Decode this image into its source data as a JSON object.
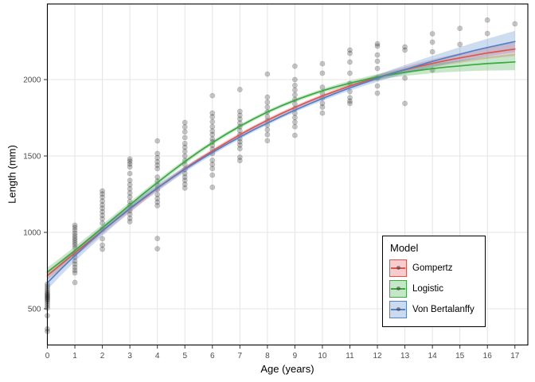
{
  "chart_data": {
    "type": "scatter",
    "title": "",
    "xlabel": "Age (years)",
    "ylabel": "Length (mm)",
    "legend_title": "Model",
    "legend_position": "inside bottom-right",
    "grid": "major only",
    "xlim": [
      0,
      17.47
    ],
    "ylim": [
      263,
      2495
    ],
    "x_ticks": [
      0,
      1,
      2,
      3,
      4,
      5,
      6,
      7,
      8,
      9,
      10,
      11,
      12,
      13,
      14,
      15,
      16,
      17
    ],
    "y_ticks": [
      500,
      1000,
      1500,
      2000
    ],
    "colors": {
      "grid": "#E4E4E4",
      "axis_text": "#4D4D4D",
      "panel_border": "#000000",
      "point": "#000000"
    },
    "points_alpha": 0.22,
    "points_by_age": {
      "0": [
        352,
        368,
        455,
        505,
        520,
        535,
        548,
        558,
        566,
        574,
        582,
        590,
        598,
        608,
        620,
        633,
        648,
        662
      ],
      "1": [
        672,
        735,
        752,
        772,
        792,
        812,
        838,
        862,
        900,
        918,
        933,
        948,
        963,
        978,
        995,
        1015,
        1032,
        1047
      ],
      "2": [
        890,
        917,
        958,
        1021,
        1060,
        1089,
        1112,
        1135,
        1158,
        1180,
        1205,
        1230,
        1252,
        1271
      ],
      "3": [
        1070,
        1092,
        1118,
        1142,
        1177,
        1203,
        1232,
        1258,
        1285,
        1312,
        1340,
        1385,
        1428,
        1448,
        1465,
        1480
      ],
      "4": [
        893,
        960,
        1175,
        1198,
        1222,
        1248,
        1281,
        1308,
        1335,
        1362,
        1417,
        1440,
        1462,
        1488,
        1516,
        1599
      ],
      "5": [
        1290,
        1315,
        1340,
        1362,
        1385,
        1412,
        1443,
        1470,
        1500,
        1530,
        1557,
        1582,
        1620,
        1658,
        1690,
        1719
      ],
      "6": [
        1295,
        1375,
        1418,
        1445,
        1472,
        1516,
        1545,
        1570,
        1592,
        1612,
        1640,
        1663,
        1692,
        1724,
        1756,
        1781,
        1895
      ],
      "7": [
        1470,
        1492,
        1548,
        1572,
        1593,
        1613,
        1640,
        1666,
        1692,
        1716,
        1742,
        1766,
        1792,
        1935
      ],
      "8": [
        1600,
        1640,
        1672,
        1702,
        1730,
        1758,
        1788,
        1820,
        1852,
        1885,
        2036
      ],
      "9": [
        1635,
        1692,
        1722,
        1752,
        1780,
        1810,
        1840,
        1870,
        1900,
        1932,
        1962,
        2000,
        2088
      ],
      "10": [
        1781,
        1820,
        1845,
        1880,
        1911,
        1950,
        2042,
        2104
      ],
      "11": [
        1844,
        1860,
        1882,
        1922,
        1975,
        2042,
        2115,
        2172,
        2193
      ],
      "12": [
        1911,
        1958,
        2010,
        2073,
        2120,
        2161,
        2219,
        2234
      ],
      "13": [
        1844,
        2010,
        2193,
        2214
      ],
      "14": [
        2063,
        2182,
        2245,
        2300
      ],
      "15": [
        2230,
        2335
      ],
      "16": [
        2302,
        2390
      ],
      "17": [
        2365
      ]
    },
    "series": [
      {
        "name": "Gompertz",
        "color": "#E0544E",
        "band": {
          "start": 30,
          "mid": 12,
          "end": 45
        },
        "x_start": 0,
        "x_step": 0.5,
        "values": [
          718,
          791,
          865,
          938,
          1011,
          1083,
          1153,
          1222,
          1289,
          1354,
          1416,
          1476,
          1533,
          1587,
          1639,
          1688,
          1734,
          1777,
          1818,
          1857,
          1893,
          1926,
          1958,
          1987,
          2014,
          2040,
          2064,
          2086,
          2106,
          2125,
          2142,
          2158,
          2174,
          2187,
          2200
        ]
      },
      {
        "name": "Logistic",
        "color": "#38A93F",
        "band": {
          "start": 30,
          "mid": 12,
          "end": 55
        },
        "x_start": 0,
        "x_step": 0.5,
        "values": [
          740,
          810,
          881,
          955,
          1030,
          1105,
          1180,
          1254,
          1326,
          1396,
          1463,
          1527,
          1587,
          1643,
          1695,
          1743,
          1788,
          1828,
          1864,
          1897,
          1927,
          1953,
          1977,
          1998,
          2017,
          2033,
          2048,
          2060,
          2072,
          2082,
          2090,
          2098,
          2105,
          2110,
          2116
        ]
      },
      {
        "name": "Von Bertalanffy",
        "color": "#5081C9",
        "band": {
          "start": 45,
          "mid": 13,
          "end": 70
        },
        "x_start": 0,
        "x_step": 0.5,
        "values": [
          670,
          761,
          848,
          930,
          1009,
          1084,
          1156,
          1225,
          1291,
          1353,
          1413,
          1469,
          1523,
          1575,
          1624,
          1672,
          1716,
          1759,
          1800,
          1839,
          1876,
          1912,
          1946,
          1978,
          2009,
          2039,
          2066,
          2093,
          2119,
          2143,
          2166,
          2189,
          2210,
          2230,
          2249
        ]
      }
    ]
  }
}
